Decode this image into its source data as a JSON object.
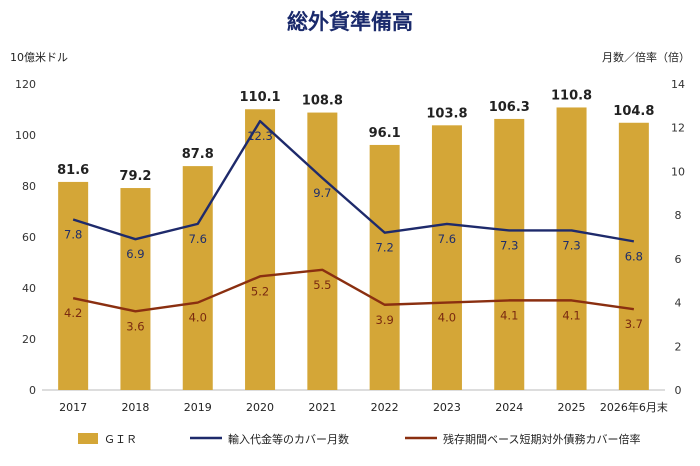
{
  "title": "総外貨準備高",
  "left_unit": "10億米ドル",
  "right_unit": "月数／倍率（倍）",
  "colors": {
    "bar": "#d4a637",
    "line1": "#1e2a6b",
    "line2": "#8a2f10",
    "title": "#1a2a6c"
  },
  "chart_data": {
    "type": "bar",
    "categories": [
      "2017",
      "2018",
      "2019",
      "2020",
      "2021",
      "2022",
      "2023",
      "2024",
      "2025",
      "2026年6月末"
    ],
    "y_left": {
      "label": "10億米ドル",
      "ylim": [
        0,
        120
      ],
      "ticks": [
        0,
        20,
        40,
        60,
        80,
        100,
        120
      ]
    },
    "y_right": {
      "label": "月数／倍率（倍）",
      "ylim": [
        0,
        14
      ],
      "ticks": [
        0,
        2,
        4,
        6,
        8,
        10,
        12,
        14
      ]
    },
    "series": [
      {
        "name": "ＧＩＲ",
        "type": "bar",
        "axis": "left",
        "values": [
          81.6,
          79.2,
          87.8,
          110.1,
          108.8,
          96.1,
          103.8,
          106.3,
          110.8,
          104.8
        ]
      },
      {
        "name": "輸入代金等のカバー月数",
        "type": "line",
        "axis": "right",
        "values": [
          7.8,
          6.9,
          7.6,
          12.3,
          9.7,
          7.2,
          7.6,
          7.3,
          7.3,
          6.8
        ]
      },
      {
        "name": "残存期間ベース短期対外債務カバー倍率",
        "type": "line",
        "axis": "right",
        "values": [
          4.2,
          3.6,
          4.0,
          5.2,
          5.5,
          3.9,
          4.0,
          4.1,
          4.1,
          3.7
        ]
      }
    ],
    "grid": false,
    "legend": "bottom"
  }
}
